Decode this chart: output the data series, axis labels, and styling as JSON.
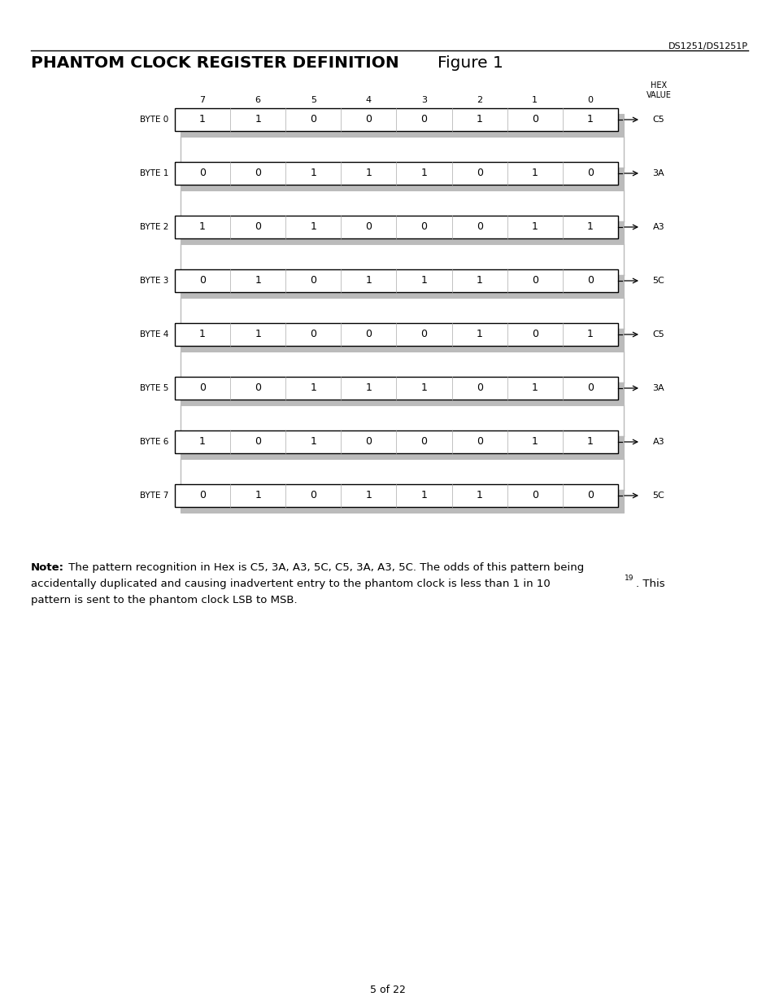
{
  "header_right": "DS1251/DS1251P",
  "title_bold": "PHANTOM CLOCK REGISTER DEFINITION",
  "title_normal": "Figure 1",
  "page_label": "5 of 22",
  "bit_labels": [
    "7",
    "6",
    "5",
    "4",
    "3",
    "2",
    "1",
    "0"
  ],
  "hex_value_label": "HEX\nVALUE",
  "bytes": [
    {
      "label": "BYTE 0",
      "bits": [
        1,
        1,
        0,
        0,
        0,
        1,
        0,
        1
      ],
      "hex": "C5"
    },
    {
      "label": "BYTE 1",
      "bits": [
        0,
        0,
        1,
        1,
        1,
        0,
        1,
        0
      ],
      "hex": "3A"
    },
    {
      "label": "BYTE 2",
      "bits": [
        1,
        0,
        1,
        0,
        0,
        0,
        1,
        1
      ],
      "hex": "A3"
    },
    {
      "label": "BYTE 3",
      "bits": [
        0,
        1,
        0,
        1,
        1,
        1,
        0,
        0
      ],
      "hex": "5C"
    },
    {
      "label": "BYTE 4",
      "bits": [
        1,
        1,
        0,
        0,
        0,
        1,
        0,
        1
      ],
      "hex": "C5"
    },
    {
      "label": "BYTE 5",
      "bits": [
        0,
        0,
        1,
        1,
        1,
        0,
        1,
        0
      ],
      "hex": "3A"
    },
    {
      "label": "BYTE 6",
      "bits": [
        1,
        0,
        1,
        0,
        0,
        0,
        1,
        1
      ],
      "hex": "A3"
    },
    {
      "label": "BYTE 7",
      "bits": [
        0,
        1,
        0,
        1,
        1,
        1,
        0,
        0
      ],
      "hex": "5C"
    }
  ],
  "note_bold": "Note:",
  "note_line1": " The pattern recognition in Hex is C5, 3A, A3, 5C, C5, 3A, A3, 5C. The odds of this pattern being",
  "note_line2": "accidentally duplicated and causing inadvertent entry to the phantom clock is less than 1 in 10",
  "note_superscript": "19",
  "note_line2_suffix": ". This",
  "note_line3": "pattern is sent to the phantom clock LSB to MSB.",
  "bg_color": "#ffffff",
  "text_color": "#000000",
  "box_fill": "#ffffff",
  "box_edge": "#000000",
  "shadow_color": "#bbbbbb"
}
